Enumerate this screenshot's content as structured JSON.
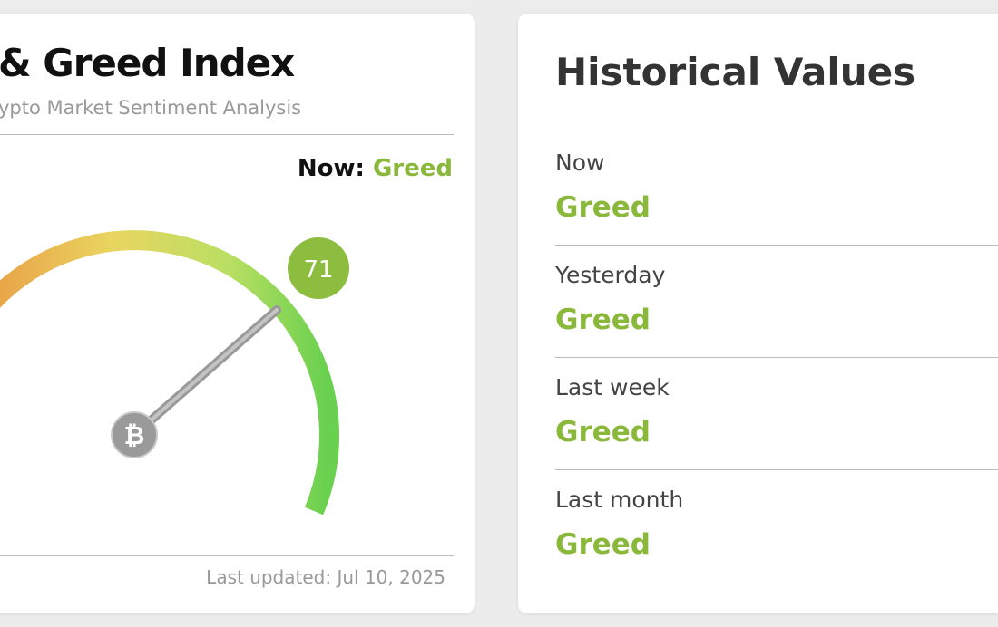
{
  "header": {
    "title": "& Greed Index",
    "subtitle": "ypto Market Sentiment Analysis"
  },
  "now": {
    "label": "Now:",
    "value": "Greed"
  },
  "gauge": {
    "value": 71
  },
  "footer": {
    "updated": "Last updated: Jul 10, 2025"
  },
  "history": {
    "title": "Historical Values",
    "rows": [
      {
        "label": "Now",
        "value": "Greed"
      },
      {
        "label": "Yesterday",
        "value": "Greed"
      },
      {
        "label": "Last week",
        "value": "Greed"
      },
      {
        "label": "Last month",
        "value": "Greed"
      }
    ]
  }
}
